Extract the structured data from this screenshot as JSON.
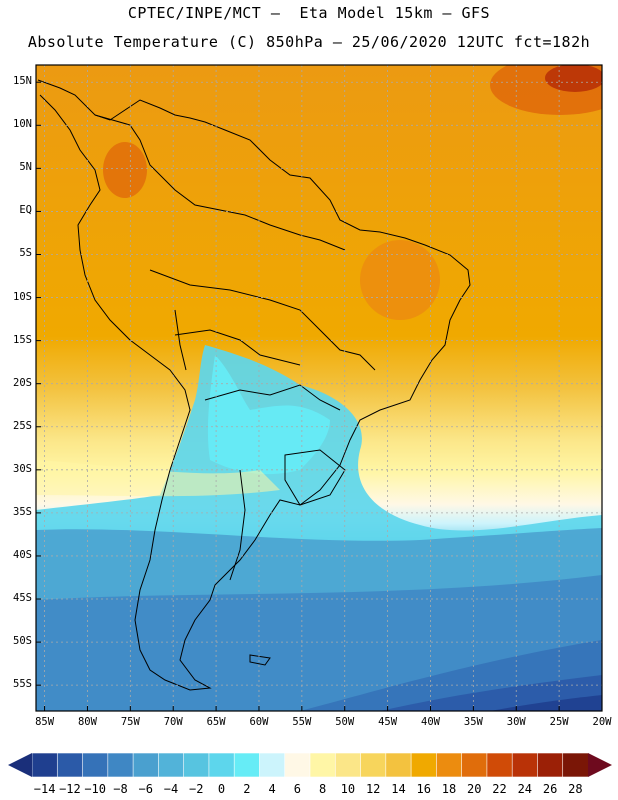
{
  "header": {
    "line1": "CPTEC/INPE/MCT –  Eta Model 15km – GFS",
    "line2": "Absolute Temperature (C) 850hPa – 25/06/2020 12UTC fct=182h"
  },
  "map": {
    "lat_labels": [
      "15N",
      "10N",
      "5N",
      "EQ",
      "5S",
      "10S",
      "15S",
      "20S",
      "25S",
      "30S",
      "35S",
      "40S",
      "45S",
      "50S",
      "55S"
    ],
    "lon_labels": [
      "85W",
      "80W",
      "75W",
      "70W",
      "65W",
      "60W",
      "55W",
      "50W",
      "45W",
      "40W",
      "35W",
      "30W",
      "25W",
      "20W"
    ],
    "lat_range": [
      17,
      -58
    ],
    "lon_range": [
      -86,
      -20
    ]
  },
  "colorbar": {
    "labels": [
      "-14",
      "-12",
      "-10",
      "-8",
      "-6",
      "-4",
      "-2",
      "0",
      "2",
      "4",
      "6",
      "8",
      "10",
      "12",
      "14",
      "16",
      "18",
      "20",
      "22",
      "24",
      "26",
      "28"
    ],
    "colors": [
      "#1f3f8f",
      "#2b5aa8",
      "#3572b8",
      "#3f87c4",
      "#4aa0cf",
      "#52b3d9",
      "#57c4e0",
      "#5dd6ec",
      "#66ecf6",
      "#ccf4fc",
      "#fff8e6",
      "#fff6a6",
      "#fbe688",
      "#f7d55c",
      "#f3c23f",
      "#f0a900",
      "#ec8c0f",
      "#e06d0b",
      "#d04b07",
      "#b93207",
      "#9b2006",
      "#7a1606"
    ]
  }
}
